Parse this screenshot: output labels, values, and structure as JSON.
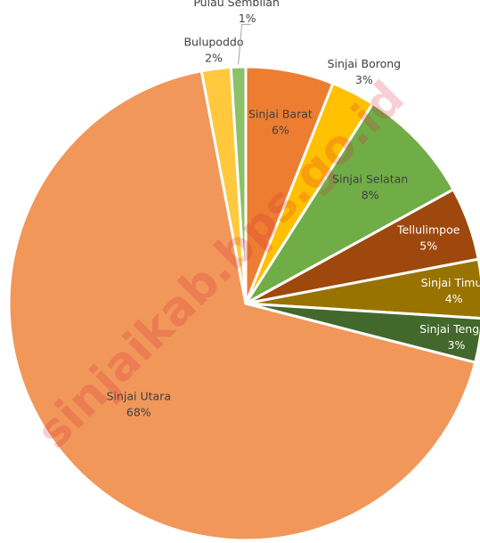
{
  "chart_data": {
    "type": "pie",
    "categories": [
      "Sinjai Barat",
      "Sinjai Borong",
      "Sinjai Selatan",
      "Tellulimpoe",
      "Sinjai Timur",
      "Sinjai Tengah",
      "Sinjai Utara",
      "Bulupoddo",
      "Pulau Sembilan"
    ],
    "values": [
      6,
      3,
      8,
      5,
      4,
      3,
      68,
      2,
      1
    ],
    "value_labels": [
      "6%",
      "3%",
      "8%",
      "5%",
      "4%",
      "3%",
      "68%",
      "2%",
      "1%"
    ],
    "colors": [
      "#ed7d31",
      "#ffc000",
      "#70ad47",
      "#9e480e",
      "#997300",
      "#43682b",
      "#f1975a",
      "#ffc83d",
      "#8cc168"
    ],
    "watermark": "sinjaikab.bps.go.id"
  }
}
